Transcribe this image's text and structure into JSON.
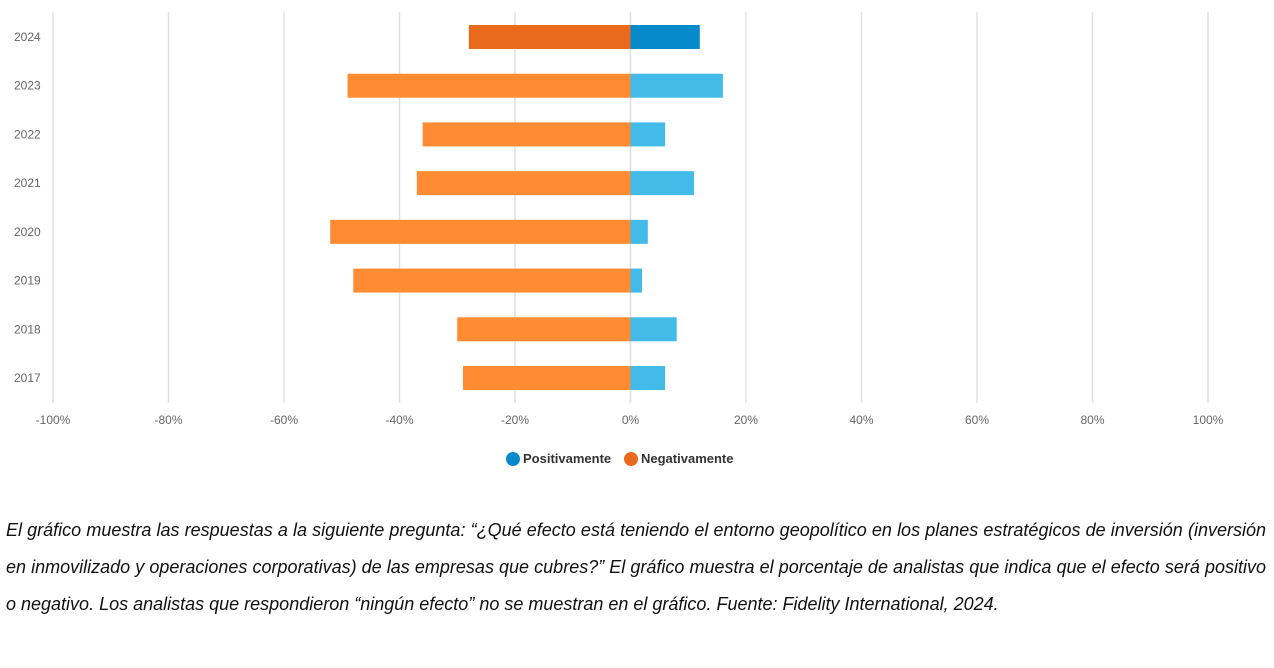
{
  "chart_data": {
    "type": "bar",
    "orientation": "horizontal",
    "stacked": "diverging",
    "categories": [
      "2024",
      "2023",
      "2022",
      "2021",
      "2020",
      "2019",
      "2018",
      "2017"
    ],
    "series": [
      {
        "name": "Positivamente",
        "values": [
          12,
          16,
          6,
          11,
          3,
          2,
          8,
          6
        ],
        "color": "#42BBE8",
        "highlight_color": "#068ACB"
      },
      {
        "name": "Negativamente",
        "values": [
          -28,
          -49,
          -36,
          -37,
          -52,
          -48,
          -30,
          -29
        ],
        "color": "#FF8C33",
        "highlight_color": "#E96A1C"
      }
    ],
    "highlighted_category": "2024",
    "xlim": [
      -100,
      100
    ],
    "xticks": [
      "-100%",
      "-80%",
      "-60%",
      "-40%",
      "-20%",
      "0%",
      "20%",
      "40%",
      "60%",
      "80%",
      "100%"
    ],
    "xtick_values": [
      -100,
      -80,
      -60,
      -40,
      -20,
      0,
      20,
      40,
      60,
      80,
      100
    ],
    "grid": true,
    "legend": {
      "placement": "bottom",
      "items": [
        "Positivamente",
        "Negativamente"
      ],
      "colors": [
        "#068ACB",
        "#E96A1C"
      ]
    }
  },
  "caption": "El gráfico muestra las respuestas a la siguiente pregunta: “¿Qué efecto está teniendo el entorno geopolítico en los planes estratégicos de inversión (inversión en inmovilizado y operaciones corporativas) de las empresas que cubres?” El gráfico muestra el porcentaje de analistas que indica que el efecto será positivo o negativo. Los analistas que respondieron “ningún efecto” no se muestran en el gráfico. Fuente: Fidelity International, 2024."
}
